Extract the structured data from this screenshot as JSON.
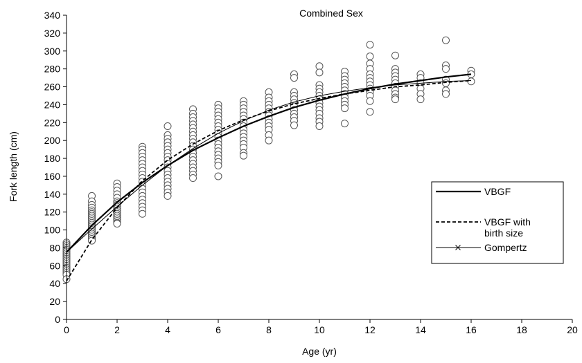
{
  "chart_data": {
    "type": "scatter",
    "title": "Combined Sex",
    "xlabel": "Age (yr)",
    "ylabel": "Fork length (cm)",
    "xlim": [
      0,
      20
    ],
    "ylim": [
      0,
      340
    ],
    "xticks": [
      0,
      2,
      4,
      6,
      8,
      10,
      12,
      14,
      16,
      18,
      20
    ],
    "yticks": [
      0,
      20,
      40,
      60,
      80,
      100,
      120,
      140,
      160,
      180,
      200,
      220,
      240,
      260,
      280,
      300,
      320,
      340
    ],
    "grid": false,
    "legend_position": "right",
    "legend": [
      {
        "label": "VBGF",
        "style": "solid-thick"
      },
      {
        "label": "VBGF with birth size",
        "style": "dashed"
      },
      {
        "label": "Gompertz",
        "style": "solid-thin-x"
      }
    ],
    "observations": [
      {
        "age": 0,
        "lengths": [
          86,
          84,
          82,
          80,
          78,
          76,
          74,
          72,
          70,
          68,
          66,
          64,
          62,
          60,
          58,
          56,
          54,
          52,
          50,
          45
        ]
      },
      {
        "age": 1,
        "lengths": [
          138,
          132,
          128,
          125,
          122,
          120,
          118,
          116,
          114,
          112,
          110,
          108,
          106,
          104,
          102,
          100,
          98,
          96,
          94,
          92,
          90,
          88
        ]
      },
      {
        "age": 2,
        "lengths": [
          152,
          148,
          144,
          140,
          136,
          132,
          130,
          128,
          126,
          124,
          122,
          120,
          118,
          116,
          114,
          112,
          110,
          108,
          107
        ]
      },
      {
        "age": 3,
        "lengths": [
          193,
          190,
          186,
          182,
          178,
          174,
          170,
          166,
          162,
          158,
          154,
          150,
          146,
          142,
          138,
          134,
          130,
          126,
          122,
          118
        ]
      },
      {
        "age": 4,
        "lengths": [
          216,
          206,
          202,
          198,
          194,
          190,
          186,
          182,
          178,
          174,
          170,
          166,
          162,
          158,
          154,
          150,
          146,
          142,
          138
        ]
      },
      {
        "age": 5,
        "lengths": [
          235,
          230,
          226,
          222,
          218,
          214,
          210,
          206,
          202,
          198,
          194,
          190,
          186,
          182,
          178,
          174,
          170,
          166,
          162,
          158
        ]
      },
      {
        "age": 6,
        "lengths": [
          240,
          236,
          232,
          228,
          224,
          220,
          216,
          212,
          208,
          204,
          200,
          196,
          192,
          188,
          184,
          180,
          176,
          172,
          160
        ]
      },
      {
        "age": 7,
        "lengths": [
          244,
          240,
          236,
          232,
          228,
          224,
          220,
          216,
          212,
          208,
          204,
          200,
          196,
          192,
          186,
          183
        ]
      },
      {
        "age": 8,
        "lengths": [
          254,
          248,
          244,
          240,
          236,
          232,
          228,
          224,
          220,
          216,
          212,
          206,
          200
        ]
      },
      {
        "age": 9,
        "lengths": [
          274,
          270,
          254,
          250,
          246,
          242,
          238,
          234,
          230,
          226,
          222,
          217
        ]
      },
      {
        "age": 10,
        "lengths": [
          283,
          276,
          262,
          258,
          254,
          250,
          246,
          242,
          238,
          234,
          230,
          225,
          221,
          216
        ]
      },
      {
        "age": 11,
        "lengths": [
          277,
          272,
          268,
          264,
          260,
          256,
          252,
          248,
          244,
          240,
          236,
          219
        ]
      },
      {
        "age": 12,
        "lengths": [
          307,
          294,
          286,
          280,
          274,
          270,
          266,
          262,
          258,
          254,
          250,
          244,
          232
        ]
      },
      {
        "age": 13,
        "lengths": [
          295,
          280,
          276,
          272,
          268,
          264,
          260,
          256,
          252,
          248,
          246
        ]
      },
      {
        "age": 14,
        "lengths": [
          274,
          270,
          264,
          258,
          252,
          246
        ]
      },
      {
        "age": 15,
        "lengths": [
          312,
          284,
          280,
          268,
          264,
          256,
          252
        ]
      },
      {
        "age": 16,
        "lengths": [
          278,
          274,
          266
        ]
      }
    ],
    "series": [
      {
        "name": "VBGF",
        "x": [
          0,
          1,
          2,
          3,
          4,
          5,
          6,
          7,
          8,
          9,
          10,
          11,
          12,
          13,
          14,
          15,
          16
        ],
        "y": [
          75,
          105,
          131,
          153,
          172,
          189,
          203,
          216,
          227,
          237,
          245,
          252,
          258,
          263,
          267,
          271,
          274
        ]
      },
      {
        "name": "VBGF with birth size",
        "x": [
          0,
          1,
          2,
          3,
          4,
          5,
          6,
          7,
          8,
          9,
          10,
          11,
          12,
          13,
          14,
          15,
          16
        ],
        "y": [
          43,
          89,
          125,
          155,
          178,
          196,
          211,
          223,
          233,
          241,
          247,
          252,
          256,
          260,
          262,
          265,
          267
        ]
      },
      {
        "name": "Gompertz",
        "x": [
          0,
          1,
          2,
          3,
          4,
          5,
          6,
          7,
          8,
          9,
          10,
          11,
          12,
          13,
          14,
          15,
          16
        ],
        "y": [
          75,
          101,
          126,
          150,
          172,
          191,
          208,
          222,
          234,
          243,
          250,
          255,
          259,
          262,
          264,
          266,
          267
        ]
      }
    ]
  }
}
